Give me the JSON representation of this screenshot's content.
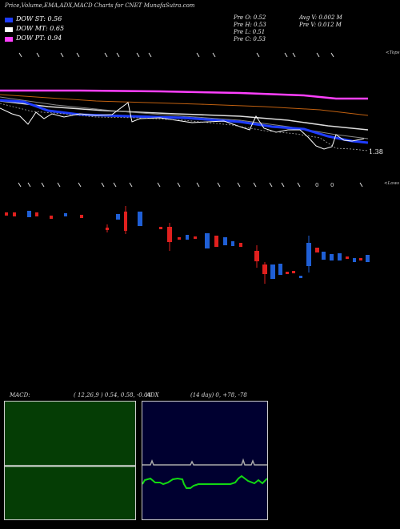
{
  "header": {
    "title": "Price,Volume,EMA,ADX,MACD Charts for CNET MunafaSutra.com"
  },
  "legend": {
    "items": [
      {
        "label": "DOW ST: 0.56",
        "color": "#1e3cff"
      },
      {
        "label": "DOW MT: 0.65",
        "color": "#ffffff"
      },
      {
        "label": "DOW PT: 0.94",
        "color": "#ff40ff"
      }
    ]
  },
  "ohlc": {
    "open": "Pre  O: 0.52",
    "high": "Pre  H: 0.53",
    "low": "Pre  L: 0.51",
    "close": "Pre  C: 0.53",
    "avg_volume": "Avg V: 0.002  M",
    "volume": "Pre  V: 0.012  M"
  },
  "markers": {
    "tops": "<Tops",
    "lows": "<Lows",
    "lows_zero_label": "0"
  },
  "price_label": "1.38",
  "macd": {
    "title": "MACD:",
    "params": "( 12,26,9 ) 0.54, 0.58, -0.04"
  },
  "adx": {
    "title": "ADX",
    "params": "(14  day) 0, +78, -78"
  },
  "footer": {
    "left": "",
    "right": ""
  },
  "colors": {
    "bull": "#1f5fd6",
    "bear": "#e0201e",
    "macd_bg": "#053d05",
    "adx_bg": "#000030",
    "ema_short": "#1e3cff",
    "ema_mid": "#ffffff",
    "ema_long": "#ff40ff",
    "ema_orange": "#c06010",
    "adx_green": "#12d812"
  },
  "chart_data": {
    "type": "candlestick",
    "y_axis": "not printed",
    "candles": [
      {
        "o": 0.5,
        "c": 0.53,
        "color": "red"
      },
      {
        "o": 0.52,
        "c": 0.5,
        "color": "red"
      },
      {
        "o": 0.51,
        "c": 0.53,
        "color": "blue"
      },
      {
        "o": 0.53,
        "c": 0.51,
        "color": "red"
      },
      {
        "o": 0.5,
        "c": 0.52,
        "color": "red"
      },
      {
        "o": 0.5,
        "c": 0.52,
        "color": "blue"
      },
      {
        "o": 0.52,
        "c": 0.5,
        "color": "red"
      },
      {
        "o": 0.49,
        "c": 0.51,
        "color": "red"
      },
      {
        "o": 0.51,
        "c": 0.5,
        "color": "blue"
      },
      {
        "o": 0.45,
        "c": 0.47,
        "color": "red"
      },
      {
        "o": 0.49,
        "c": 0.52,
        "color": "blue"
      },
      {
        "o": 0.52,
        "c": 0.48,
        "color": "red"
      },
      {
        "o": 0.48,
        "c": 0.47,
        "color": "blue"
      }
    ],
    "series": [
      {
        "name": "DOW ST",
        "value": 0.56
      },
      {
        "name": "DOW MT",
        "value": 0.65
      },
      {
        "name": "DOW PT",
        "value": 0.94
      }
    ]
  }
}
